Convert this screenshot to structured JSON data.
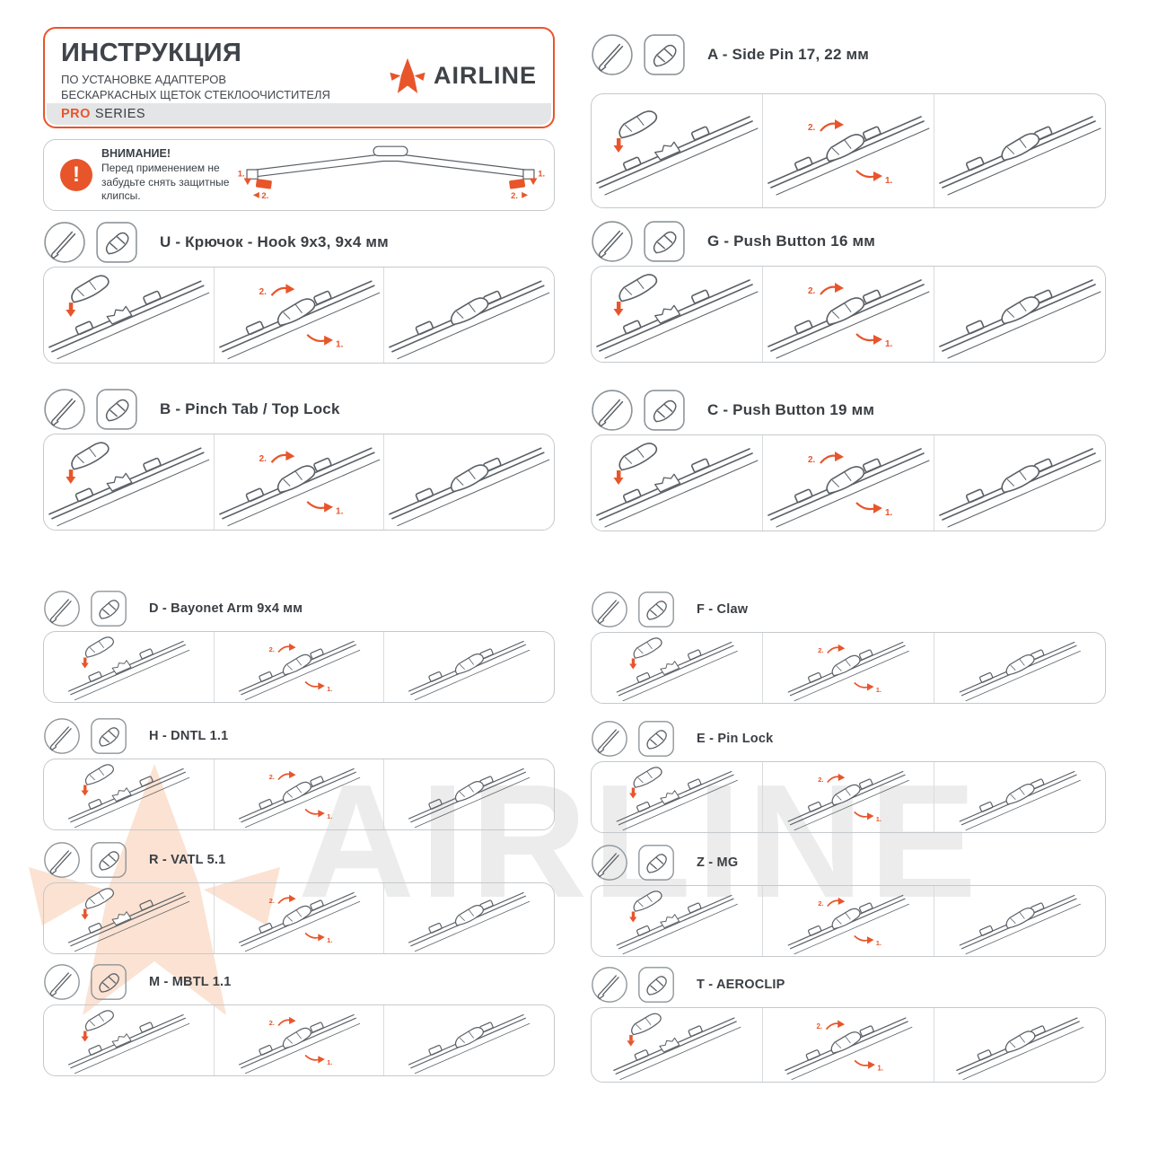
{
  "header": {
    "title": "ИНСТРУКЦИЯ",
    "subtitle_line1": "ПО УСТАНОВКЕ АДАПТЕРОВ",
    "subtitle_line2": "БЕСКАРКАСНЫХ ЩЕТОК СТЕКЛООЧИСТИТЕЛЯ",
    "series_highlight": "PRO",
    "series_rest": "SERIES",
    "brand": "AIRLINE"
  },
  "warning": {
    "title": "ВНИМАНИЕ!",
    "text": "Перед применением не забудьте снять защитные клипсы.",
    "step1": "1.",
    "step2": "2."
  },
  "steps": {
    "one": "1.",
    "two": "2."
  },
  "watermark": {
    "text": "AIRLINE"
  },
  "colors": {
    "accent": "#E8552B",
    "dark_text": "#3A3F44",
    "line_art": "#5A6066",
    "panel_border": "#C5C9CC",
    "series_bar": "#E4E5E7",
    "watermark_gray": "#ECECEC",
    "watermark_peach": "#FBE2D2"
  },
  "sections": [
    {
      "id": "U",
      "label": "U - Крючок - Hook 9x3, 9x4 мм"
    },
    {
      "id": "B",
      "label": "B - Pinch Tab / Top Lock"
    },
    {
      "id": "D",
      "label": "D - Bayonet Arm 9x4 мм"
    },
    {
      "id": "H",
      "label": "H - DNTL 1.1"
    },
    {
      "id": "R",
      "label": "R - VATL 5.1"
    },
    {
      "id": "M",
      "label": "M - MBTL 1.1"
    },
    {
      "id": "A",
      "label": "A - Side Pin 17, 22 мм"
    },
    {
      "id": "G",
      "label": "G - Push Button 16 мм"
    },
    {
      "id": "C",
      "label": "C - Push Button 19 мм"
    },
    {
      "id": "F",
      "label": "F - Claw"
    },
    {
      "id": "E",
      "label": "E - Pin Lock"
    },
    {
      "id": "Z",
      "label": "Z - MG"
    },
    {
      "id": "T",
      "label": "T - AEROCLIP"
    }
  ]
}
